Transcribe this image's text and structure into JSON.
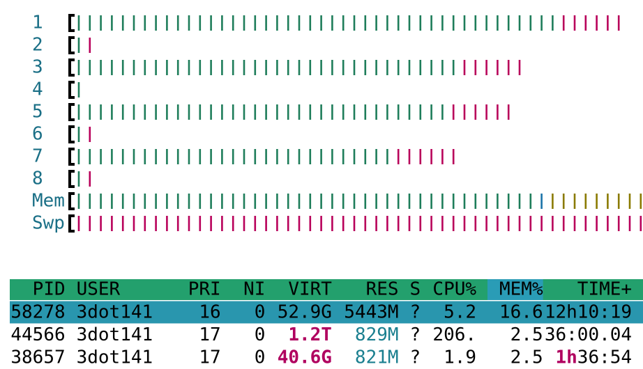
{
  "meters": [
    {
      "label": "1",
      "segments": [
        {
          "count": 44,
          "color": "#1e7d5a"
        },
        {
          "count": 6,
          "color": "#b8005a"
        }
      ]
    },
    {
      "label": "2",
      "segments": [
        {
          "count": 1,
          "color": "#1e7d5a"
        },
        {
          "count": 1,
          "color": "#b8005a"
        }
      ]
    },
    {
      "label": "3",
      "segments": [
        {
          "count": 35,
          "color": "#1e7d5a"
        },
        {
          "count": 6,
          "color": "#b8005a"
        }
      ]
    },
    {
      "label": "4",
      "segments": [
        {
          "count": 1,
          "color": "#1e7d5a"
        }
      ]
    },
    {
      "label": "5",
      "segments": [
        {
          "count": 34,
          "color": "#1e7d5a"
        },
        {
          "count": 6,
          "color": "#b8005a"
        }
      ]
    },
    {
      "label": "6",
      "segments": [
        {
          "count": 1,
          "color": "#1e7d5a"
        },
        {
          "count": 1,
          "color": "#b8005a"
        }
      ]
    },
    {
      "label": "7",
      "segments": [
        {
          "count": 29,
          "color": "#1e7d5a"
        },
        {
          "count": 6,
          "color": "#b8005a"
        }
      ]
    },
    {
      "label": "8",
      "segments": [
        {
          "count": 1,
          "color": "#1e7d5a"
        },
        {
          "count": 1,
          "color": "#b8005a"
        }
      ]
    },
    {
      "label": "Mem",
      "segments": [
        {
          "count": 42,
          "color": "#1e7d5a"
        },
        {
          "count": 1,
          "color": "#1a73a8"
        },
        {
          "count": 9,
          "color": "#8a7a00"
        }
      ]
    },
    {
      "label": "Swp",
      "segments": [
        {
          "count": 52,
          "color": "#b8005a"
        }
      ]
    }
  ],
  "table": {
    "header": [
      "PID",
      "USER",
      "PRI",
      "NI",
      "VIRT",
      "RES",
      "S",
      "CPU%",
      "MEM%",
      "TIME+"
    ],
    "rows": [
      {
        "selected": true,
        "cells": [
          {
            "parts": [
              {
                "text": "58278"
              }
            ]
          },
          {
            "parts": [
              {
                "text": "3dot141"
              }
            ]
          },
          {
            "parts": [
              {
                "text": "16"
              }
            ]
          },
          {
            "parts": [
              {
                "text": "0"
              }
            ]
          },
          {
            "parts": [
              {
                "text": "52.9G"
              }
            ]
          },
          {
            "parts": [
              {
                "text": "5443M"
              }
            ]
          },
          {
            "parts": [
              {
                "text": "?"
              }
            ]
          },
          {
            "parts": [
              {
                "text": "5.2"
              }
            ]
          },
          {
            "parts": [
              {
                "text": "16.6"
              }
            ]
          },
          {
            "parts": [
              {
                "text": "12h10:19"
              }
            ]
          }
        ]
      },
      {
        "selected": false,
        "cells": [
          {
            "parts": [
              {
                "text": "44566"
              }
            ]
          },
          {
            "parts": [
              {
                "text": "3dot141"
              }
            ]
          },
          {
            "parts": [
              {
                "text": "17"
              }
            ]
          },
          {
            "parts": [
              {
                "text": "0"
              }
            ]
          },
          {
            "parts": [
              {
                "text": "1.2T",
                "color": "#b0005f",
                "bold": true
              }
            ]
          },
          {
            "parts": [
              {
                "text": "829M",
                "color": "#1a7f8f"
              }
            ]
          },
          {
            "parts": [
              {
                "text": "?"
              }
            ]
          },
          {
            "parts": [
              {
                "text": "206."
              }
            ]
          },
          {
            "parts": [
              {
                "text": "2.5"
              }
            ]
          },
          {
            "parts": [
              {
                "text": "36:00.04"
              }
            ]
          }
        ]
      },
      {
        "selected": false,
        "cells": [
          {
            "parts": [
              {
                "text": "38657"
              }
            ]
          },
          {
            "parts": [
              {
                "text": "3dot141"
              }
            ]
          },
          {
            "parts": [
              {
                "text": "17"
              }
            ]
          },
          {
            "parts": [
              {
                "text": "0"
              }
            ]
          },
          {
            "parts": [
              {
                "text": "40.6G",
                "color": "#b0005f",
                "bold": true
              }
            ]
          },
          {
            "parts": [
              {
                "text": "821M",
                "color": "#1a7f8f"
              }
            ]
          },
          {
            "parts": [
              {
                "text": "?"
              }
            ]
          },
          {
            "parts": [
              {
                "text": "1.9"
              }
            ]
          },
          {
            "parts": [
              {
                "text": "2.5"
              }
            ]
          },
          {
            "parts": [
              {
                "text": "1h",
                "color": "#b0005f",
                "bold": true
              },
              {
                "text": "36:54"
              }
            ]
          }
        ]
      }
    ]
  }
}
